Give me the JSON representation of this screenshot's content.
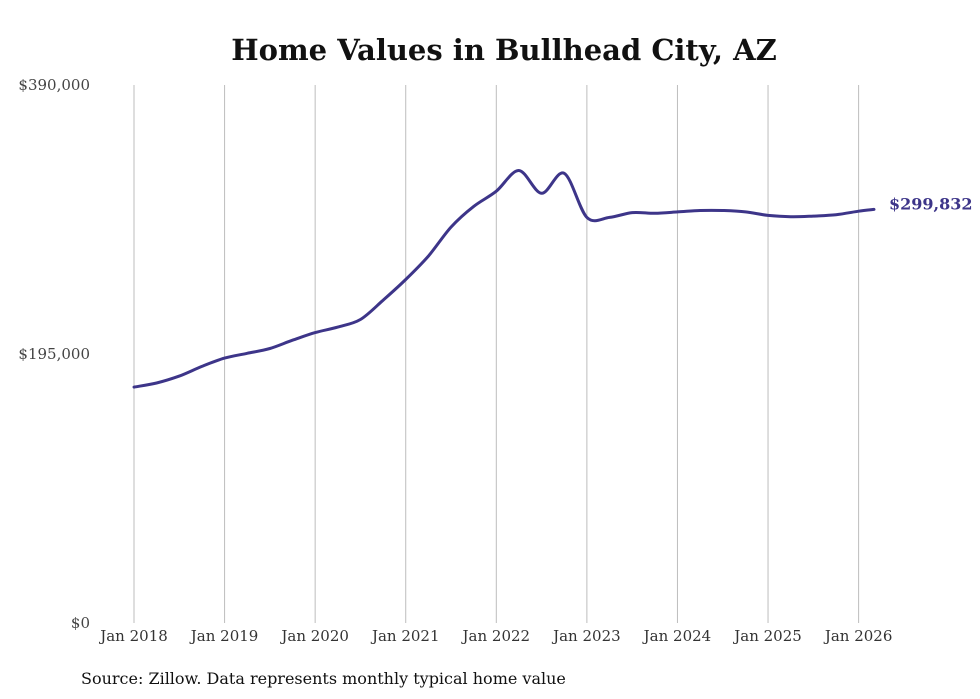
{
  "chart_data": {
    "type": "line",
    "title": "Home Values in Bullhead City, AZ",
    "xlabel": "",
    "ylabel": "",
    "x_range": [
      2018.0,
      2026.17
    ],
    "ylim": [
      0,
      390000
    ],
    "y_ticks": [
      {
        "value": 0,
        "label": "$0"
      },
      {
        "value": 195000,
        "label": "$195,000"
      },
      {
        "value": 390000,
        "label": "$390,000"
      }
    ],
    "x_ticks": [
      {
        "value": 2018,
        "label": "Jan 2018"
      },
      {
        "value": 2019,
        "label": "Jan 2019"
      },
      {
        "value": 2020,
        "label": "Jan 2020"
      },
      {
        "value": 2021,
        "label": "Jan 2021"
      },
      {
        "value": 2022,
        "label": "Jan 2022"
      },
      {
        "value": 2023,
        "label": "Jan 2023"
      },
      {
        "value": 2024,
        "label": "Jan 2024"
      },
      {
        "value": 2025,
        "label": "Jan 2025"
      },
      {
        "value": 2026,
        "label": "Jan 2026"
      }
    ],
    "grid": "vertical",
    "series": [
      {
        "name": "Typical home value",
        "color": "#3d3589",
        "end_label": "$299,832",
        "x": [
          2018.0,
          2018.25,
          2018.5,
          2018.75,
          2019.0,
          2019.25,
          2019.5,
          2019.75,
          2020.0,
          2020.25,
          2020.5,
          2020.75,
          2021.0,
          2021.25,
          2021.5,
          2021.75,
          2022.0,
          2022.25,
          2022.5,
          2022.75,
          2023.0,
          2023.25,
          2023.5,
          2023.75,
          2024.0,
          2024.25,
          2024.5,
          2024.75,
          2025.0,
          2025.25,
          2025.5,
          2025.75,
          2026.0,
          2026.17
        ],
        "values": [
          171000,
          174000,
          179000,
          186000,
          192000,
          195500,
          199000,
          205000,
          210500,
          214500,
          220000,
          234000,
          249000,
          266000,
          287000,
          302000,
          313000,
          328000,
          311500,
          326000,
          294000,
          294000,
          297500,
          297000,
          298000,
          299000,
          299000,
          298000,
          295500,
          294500,
          295000,
          296000,
          298500,
          299832
        ]
      }
    ]
  },
  "footer": {
    "source": "Source: Zillow. Data represents monthly typical home value"
  }
}
